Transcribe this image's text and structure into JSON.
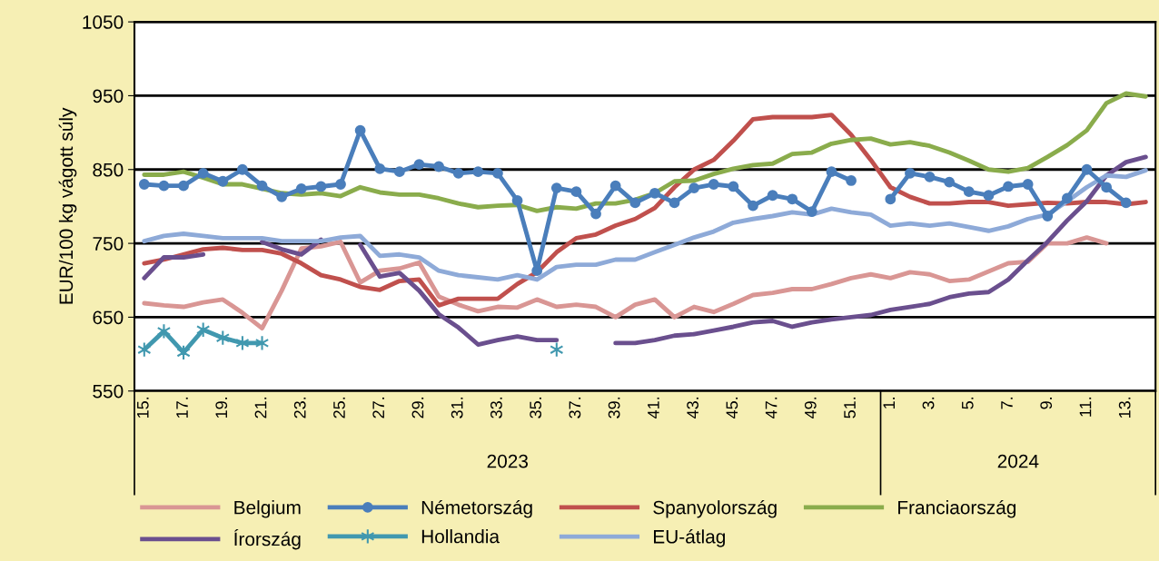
{
  "chart_data": {
    "type": "line",
    "ylabel": "EUR/100 kg vágott súly",
    "categories": [
      "15.",
      null,
      "17.",
      null,
      "19.",
      null,
      "21.",
      null,
      "23.",
      null,
      "25.",
      null,
      "27.",
      null,
      "29.",
      null,
      "31.",
      null,
      "33.",
      null,
      "35.",
      null,
      "37.",
      null,
      "39.",
      null,
      "41.",
      null,
      "43.",
      null,
      "45.",
      null,
      "47.",
      null,
      "49.",
      null,
      "51.",
      null,
      "1.",
      null,
      "3.",
      null,
      "5.",
      null,
      "7.",
      null,
      "9.",
      null,
      "11.",
      null,
      "13.",
      null
    ],
    "ylim": [
      550,
      1050
    ],
    "yticks": [
      550,
      650,
      750,
      850,
      950,
      1050
    ],
    "grid": "y",
    "legend": "bottom",
    "annotations": [
      "2023",
      "2024"
    ],
    "series": [
      {
        "name": "Belgium",
        "color": "#d99694",
        "marker": "none",
        "values": [
          669,
          666,
          664,
          670,
          674,
          656,
          635,
          686,
          743,
          746,
          752,
          697,
          713,
          716,
          724,
          678,
          667,
          658,
          664,
          663,
          674,
          664,
          667,
          664,
          650,
          667,
          674,
          650,
          664,
          657,
          668,
          680,
          683,
          688,
          688,
          695,
          703,
          708,
          703,
          711,
          708,
          699,
          701,
          712,
          723,
          725,
          750,
          750,
          758,
          750,
          null,
          null
        ]
      },
      {
        "name": "Németország",
        "color": "#4a7ebb",
        "marker": "circle",
        "values": [
          830,
          828,
          828,
          845,
          834,
          850,
          828,
          813,
          824,
          827,
          830,
          903,
          851,
          847,
          857,
          854,
          845,
          847,
          845,
          808,
          713,
          825,
          820,
          790,
          828,
          805,
          818,
          805,
          825,
          830,
          827,
          801,
          815,
          810,
          793,
          847,
          835,
          null,
          810,
          845,
          840,
          833,
          820,
          815,
          827,
          830,
          787,
          811,
          850,
          826,
          805,
          null
        ]
      },
      {
        "name": "Spanyolország",
        "color": "#c0504d",
        "marker": "none",
        "values": [
          723,
          728,
          735,
          742,
          744,
          741,
          741,
          736,
          723,
          707,
          701,
          691,
          687,
          699,
          701,
          666,
          675,
          675,
          675,
          695,
          711,
          738,
          757,
          762,
          774,
          783,
          798,
          826,
          850,
          863,
          889,
          918,
          921,
          921,
          921,
          924,
          897,
          863,
          826,
          813,
          804,
          804,
          806,
          806,
          801,
          803,
          805,
          804,
          806,
          806,
          803,
          806
        ]
      },
      {
        "name": "Franciaország",
        "color": "#8aac4c",
        "marker": "none",
        "values": [
          843,
          843,
          847,
          839,
          830,
          830,
          824,
          818,
          816,
          818,
          814,
          826,
          819,
          816,
          816,
          811,
          804,
          799,
          801,
          802,
          794,
          799,
          797,
          804,
          804,
          809,
          818,
          834,
          835,
          844,
          851,
          856,
          858,
          871,
          873,
          885,
          890,
          892,
          884,
          887,
          882,
          873,
          862,
          850,
          847,
          852,
          867,
          883,
          903,
          940,
          953,
          949
        ]
      },
      {
        "name": "Írország",
        "color": "#6a4f8e",
        "marker": "none",
        "values": [
          703,
          731,
          731,
          735,
          null,
          null,
          752,
          742,
          735,
          755,
          null,
          748,
          705,
          710,
          686,
          654,
          636,
          613,
          619,
          624,
          619,
          619,
          null,
          null,
          615,
          615,
          619,
          625,
          627,
          632,
          637,
          643,
          645,
          637,
          643,
          647,
          650,
          653,
          660,
          664,
          668,
          677,
          682,
          684,
          701,
          727,
          752,
          781,
          807,
          842,
          860,
          867
        ]
      },
      {
        "name": "Hollandia",
        "color": "#4198af",
        "marker": "cross",
        "values": [
          606,
          631,
          602,
          633,
          622,
          615,
          615,
          null,
          null,
          null,
          null,
          null,
          null,
          null,
          null,
          null,
          null,
          null,
          null,
          null,
          null,
          606,
          null,
          null,
          null,
          null,
          null,
          null,
          null,
          null,
          null,
          null,
          null,
          null,
          null,
          null,
          null,
          null,
          null,
          null,
          null,
          null,
          null,
          null,
          null,
          null,
          null,
          null,
          null,
          null,
          null,
          null
        ]
      },
      {
        "name": "EU-átlag",
        "color": "#8eaad8",
        "marker": "none",
        "values": [
          753,
          760,
          763,
          760,
          757,
          757,
          757,
          753,
          753,
          753,
          758,
          760,
          733,
          735,
          731,
          713,
          707,
          704,
          701,
          707,
          701,
          718,
          721,
          721,
          728,
          728,
          738,
          748,
          758,
          766,
          778,
          783,
          787,
          792,
          789,
          797,
          792,
          789,
          774,
          777,
          774,
          777,
          772,
          767,
          773,
          783,
          789,
          807,
          826,
          842,
          840,
          849
        ]
      }
    ]
  }
}
